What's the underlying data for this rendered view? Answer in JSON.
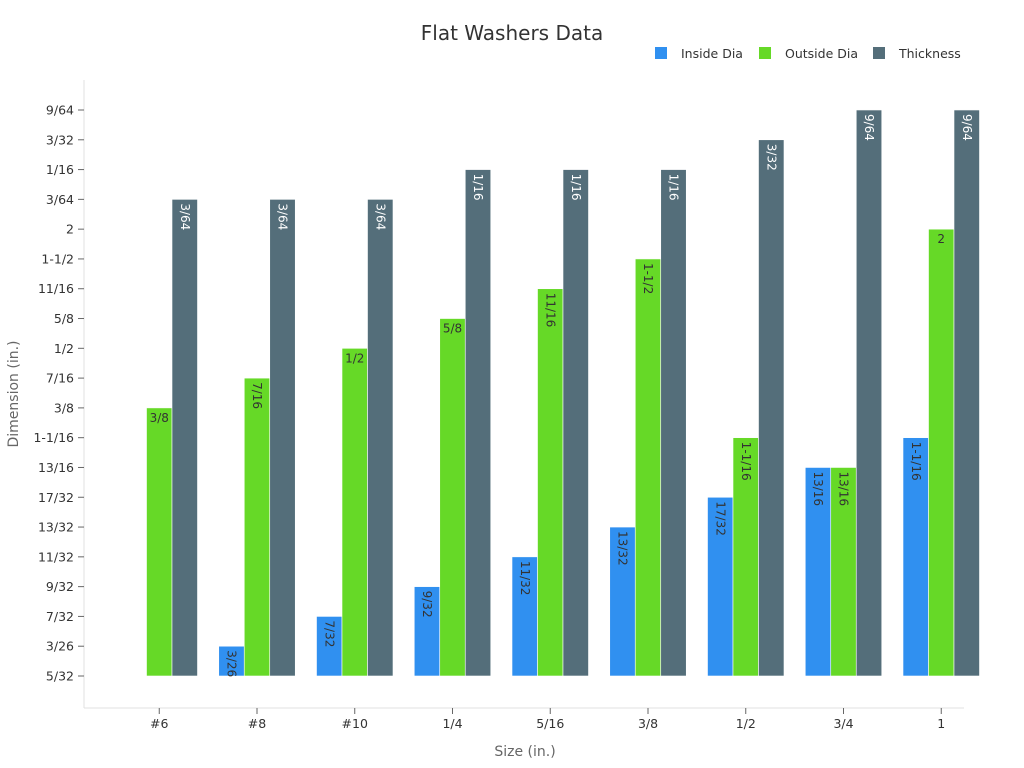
{
  "chart_data": {
    "type": "bar",
    "title": "Flat Washers Data",
    "xlabel": "Size (in.)",
    "ylabel": "Dimension (in.)",
    "categories": [
      "#6",
      "#8",
      "#10",
      "1/4",
      "5/16",
      "3/8",
      "1/2",
      "3/4",
      "1"
    ],
    "y_tick_labels": [
      "5/32",
      "3/26",
      "7/32",
      "9/32",
      "11/32",
      "13/32",
      "17/32",
      "13/16",
      "1-1/16",
      "3/8",
      "7/16",
      "1/2",
      "5/8",
      "11/16",
      "1-1/2",
      "2",
      "3/64",
      "1/16",
      "3/32",
      "9/64"
    ],
    "legend_position": "top-right",
    "grid": false,
    "series": [
      {
        "name": "Inside Dia",
        "color": "#3090f0",
        "label_color": "#333333",
        "labels": [
          null,
          "3/26",
          "7/32",
          "9/32",
          "11/32",
          "13/32",
          "17/32",
          "13/16",
          "1-1/16"
        ],
        "values": [
          null,
          1,
          2,
          3,
          4,
          5,
          6,
          7,
          8
        ]
      },
      {
        "name": "Outside Dia",
        "color": "#66d927",
        "label_color": "#333333",
        "labels": [
          "3/8",
          "7/16",
          "1/2",
          "5/8",
          "11/16",
          "1-1/2",
          "1-1/16",
          "13/16",
          "2"
        ],
        "values": [
          9,
          10,
          11,
          12,
          13,
          14,
          8,
          7,
          15
        ]
      },
      {
        "name": "Thickness",
        "color": "#546e7a",
        "label_color": "#ffffff",
        "labels": [
          "3/64",
          "3/64",
          "3/64",
          "1/16",
          "1/16",
          "1/16",
          "3/32",
          "9/64",
          "9/64"
        ],
        "values": [
          16,
          16,
          16,
          17,
          17,
          17,
          18,
          19,
          19
        ]
      }
    ]
  }
}
